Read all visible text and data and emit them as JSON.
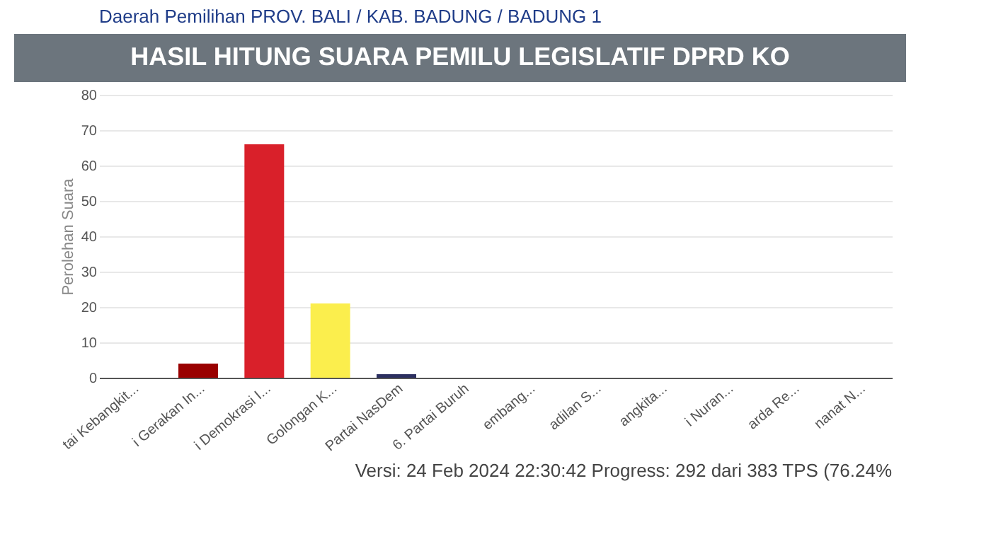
{
  "chart_data": {
    "type": "bar",
    "title": "HASIL HITUNG SUARA PEMILU LEGISLATIF DPRD KO",
    "ylabel": "Perolehan Suara",
    "annotations": [
      "Daerah Pemilihan PROV. BALI / KAB. BADUNG / BADUNG 1",
      "Versi: 24 Feb 2024 22:30:42 Progress: 292 dari 383 TPS (76.24%"
    ],
    "categories": [
      "tai Kebangkit...",
      "i Gerakan In...",
      "i Demokrasi I...",
      "Golongan K...",
      "Partai NasDem",
      "6. Partai Buruh",
      "embang...",
      "adilan S...",
      "angkita...",
      "i Nuran...",
      "arda Re...",
      "nanat N..."
    ],
    "values": [
      0,
      4,
      66,
      21,
      1,
      0,
      0,
      0,
      0,
      0,
      0,
      0
    ],
    "colors": [
      "#2e7d32",
      "#990000",
      "#d9202a",
      "#fbee4d",
      "#2b2f60",
      "#e65100",
      "#1565c0",
      "#212121",
      "#c62828",
      "#f57c00",
      "#1a237e",
      "#0d47a1"
    ],
    "ylim": [
      0,
      80
    ],
    "yticks": [
      0,
      10,
      20,
      30,
      40,
      50,
      60,
      70,
      80
    ],
    "grid": "y"
  }
}
